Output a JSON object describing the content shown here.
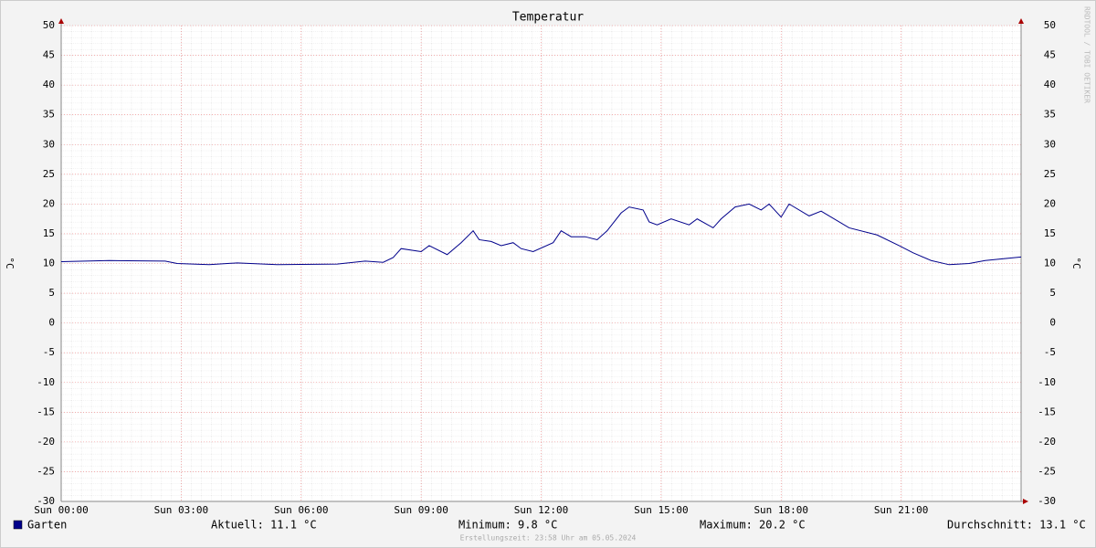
{
  "chart_data": {
    "type": "line",
    "title": "Temperatur",
    "y_label": "°C",
    "watermark": "RRDTOOL / TOBI OETIKER",
    "x": [
      0,
      1.2,
      2.6,
      2.9,
      3.7,
      4.4,
      5.4,
      6.9,
      7.6,
      8.05,
      8.3,
      8.5,
      9.0,
      9.2,
      9.65,
      10.0,
      10.3,
      10.45,
      10.75,
      11.0,
      11.3,
      11.5,
      11.8,
      12.3,
      12.5,
      12.75,
      13.1,
      13.4,
      13.65,
      14.0,
      14.2,
      14.55,
      14.7,
      14.9,
      15.25,
      15.7,
      15.9,
      16.3,
      16.5,
      16.85,
      17.2,
      17.5,
      17.7,
      18.0,
      18.2,
      18.7,
      19.0,
      19.7,
      20.4,
      20.95,
      21.3,
      21.75,
      22.2,
      22.7,
      23.1,
      24.0
    ],
    "series": [
      {
        "name": "Garten",
        "color": "#00008b",
        "values": [
          10.3,
          10.5,
          10.4,
          10.0,
          9.8,
          10.1,
          9.8,
          9.9,
          10.4,
          10.2,
          11.0,
          12.5,
          12.0,
          13.0,
          11.5,
          13.5,
          15.5,
          14.0,
          13.7,
          13.0,
          13.5,
          12.5,
          12.0,
          13.5,
          15.5,
          14.5,
          14.5,
          14.0,
          15.5,
          18.5,
          19.5,
          19.0,
          17.0,
          16.5,
          17.5,
          16.5,
          17.5,
          16.0,
          17.5,
          19.5,
          20.0,
          19.0,
          20.0,
          17.8,
          20.0,
          18.0,
          18.8,
          16.0,
          14.8,
          13.0,
          11.8,
          10.5,
          9.8,
          10.0,
          10.5,
          11.1
        ]
      }
    ],
    "xlim": [
      0,
      24
    ],
    "xticks": [
      {
        "value": 0,
        "label": "Sun 00:00"
      },
      {
        "value": 3,
        "label": "Sun 03:00"
      },
      {
        "value": 6,
        "label": "Sun 06:00"
      },
      {
        "value": 9,
        "label": "Sun 09:00"
      },
      {
        "value": 12,
        "label": "Sun 12:00"
      },
      {
        "value": 15,
        "label": "Sun 15:00"
      },
      {
        "value": 18,
        "label": "Sun 18:00"
      },
      {
        "value": 21,
        "label": "Sun 21:00"
      }
    ],
    "ylim": [
      -30,
      50
    ],
    "yticks": [
      -30,
      -25,
      -20,
      -15,
      -10,
      -5,
      0,
      5,
      10,
      15,
      20,
      25,
      30,
      35,
      40,
      45,
      50
    ],
    "grid": true,
    "stats": [
      "Aktuell: 11.1 °C",
      "Minimum: 9.8 °C",
      "Maximum: 20.2 °C",
      "Durchschnitt: 13.1 °C"
    ],
    "footer": "Erstellungszeit: 23:58 Uhr am 05.05.2024"
  }
}
